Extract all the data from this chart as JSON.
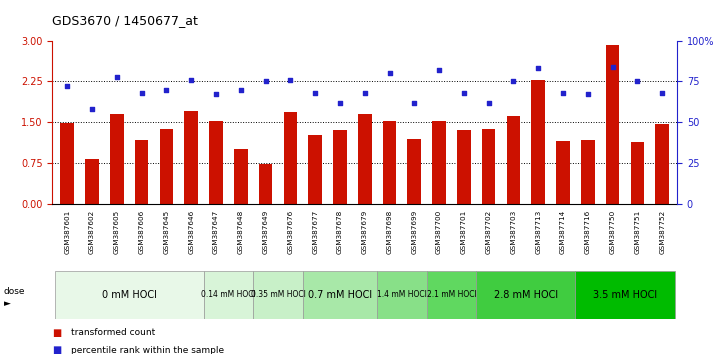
{
  "title": "GDS3670 / 1450677_at",
  "samples": [
    "GSM387601",
    "GSM387602",
    "GSM387605",
    "GSM387606",
    "GSM387645",
    "GSM387646",
    "GSM387647",
    "GSM387648",
    "GSM387649",
    "GSM387676",
    "GSM387677",
    "GSM387678",
    "GSM387679",
    "GSM387698",
    "GSM387699",
    "GSM387700",
    "GSM387701",
    "GSM387702",
    "GSM387703",
    "GSM387713",
    "GSM387714",
    "GSM387716",
    "GSM387750",
    "GSM387751",
    "GSM387752"
  ],
  "transformed_count": [
    1.48,
    0.82,
    1.65,
    1.17,
    1.38,
    1.7,
    1.52,
    1.0,
    0.72,
    1.68,
    1.27,
    1.35,
    1.65,
    1.52,
    1.18,
    1.52,
    1.35,
    1.38,
    1.62,
    2.27,
    1.15,
    1.17,
    2.92,
    1.13,
    1.47
  ],
  "percentile_rank": [
    72,
    58,
    78,
    68,
    70,
    76,
    67,
    70,
    75,
    76,
    68,
    62,
    68,
    80,
    62,
    82,
    68,
    62,
    75,
    83,
    68,
    67,
    84,
    75,
    68
  ],
  "dose_groups": [
    {
      "label": "0 mM HOCl",
      "start": 0,
      "end": 6,
      "color": "#e8f8e8"
    },
    {
      "label": "0.14 mM HOCl",
      "start": 6,
      "end": 8,
      "color": "#d8f4d8"
    },
    {
      "label": "0.35 mM HOCl",
      "start": 8,
      "end": 10,
      "color": "#c8f0c8"
    },
    {
      "label": "0.7 mM HOCl",
      "start": 10,
      "end": 13,
      "color": "#a8e8a8"
    },
    {
      "label": "1.4 mM HOCl",
      "start": 13,
      "end": 15,
      "color": "#88e088"
    },
    {
      "label": "2.1 mM HOCl",
      "start": 15,
      "end": 17,
      "color": "#60d860"
    },
    {
      "label": "2.8 mM HOCl",
      "start": 17,
      "end": 21,
      "color": "#40cc40"
    },
    {
      "label": "3.5 mM HOCl",
      "start": 21,
      "end": 25,
      "color": "#00bb00"
    }
  ],
  "bar_color": "#cc1100",
  "dot_color": "#2222cc",
  "ylim_left": [
    0,
    3
  ],
  "ylim_right": [
    0,
    100
  ],
  "yticks_left": [
    0,
    0.75,
    1.5,
    2.25,
    3
  ],
  "yticks_right": [
    0,
    25,
    50,
    75,
    100
  ],
  "ytick_labels_right": [
    "0",
    "25",
    "50",
    "75",
    "100%"
  ],
  "axis_label_color_left": "#cc1100",
  "axis_label_color_right": "#2222cc"
}
